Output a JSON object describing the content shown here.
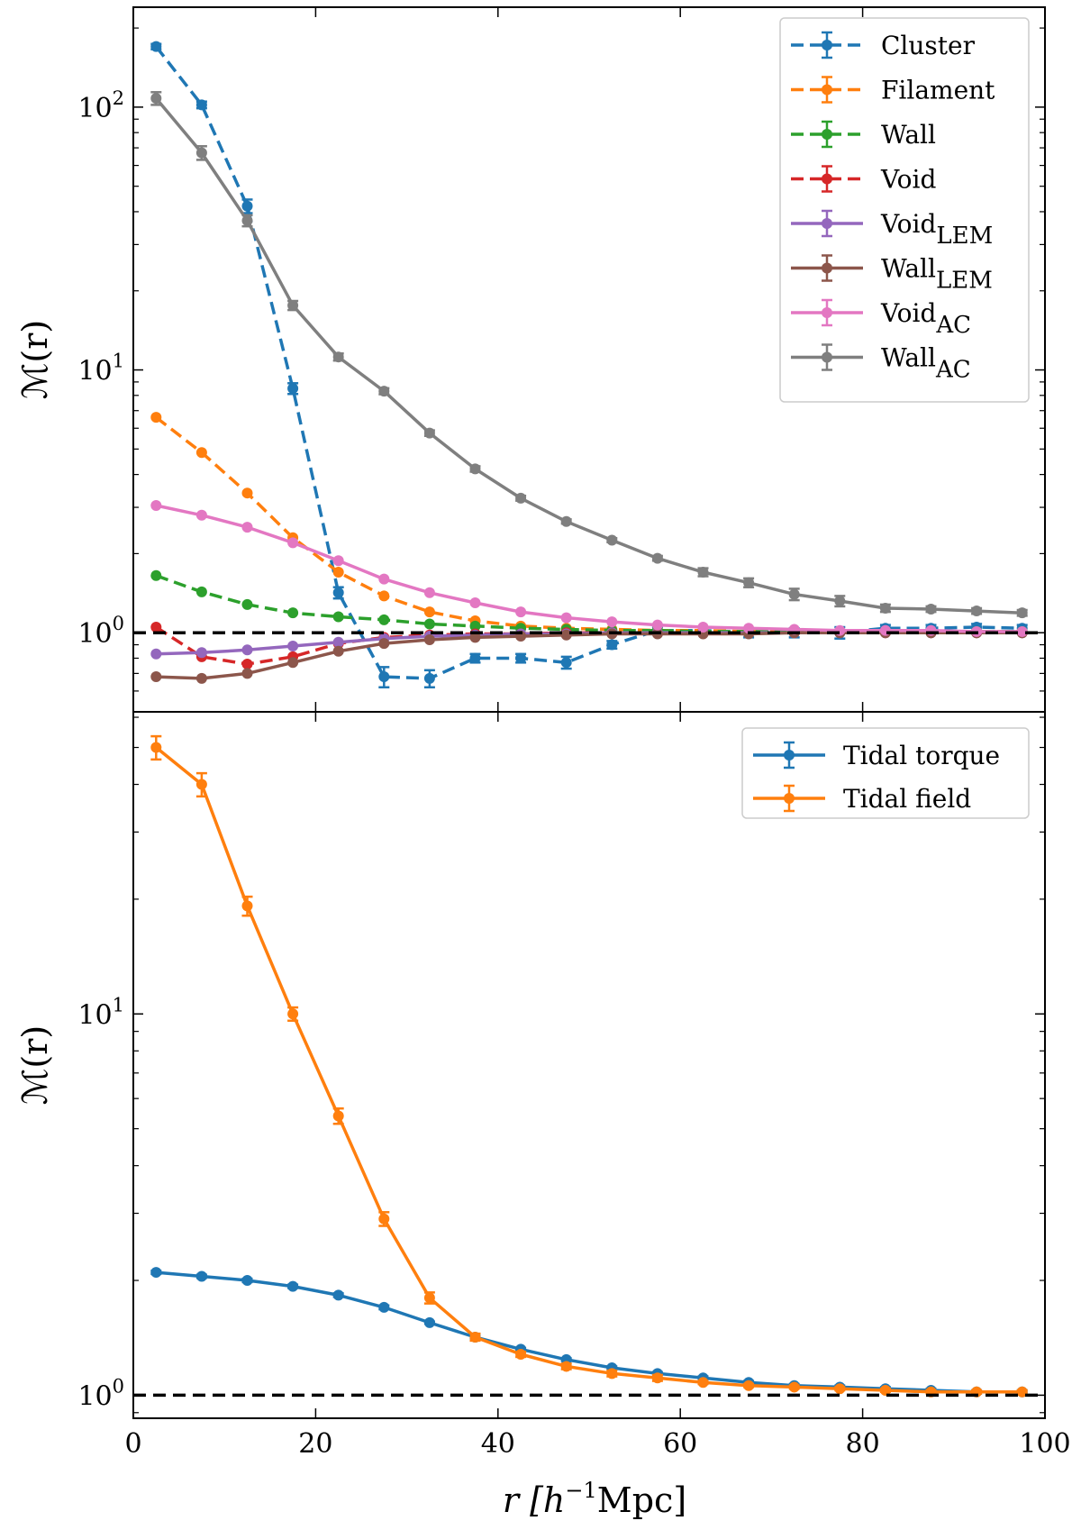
{
  "figure": {
    "xlabel_main": "r [h",
    "xlabel_sup": "−1",
    "xlabel_tail": "Mpc]",
    "xlim": [
      0,
      100
    ],
    "x_ticks": [
      0,
      20,
      40,
      60,
      80,
      100
    ],
    "x_tick_labels": [
      "0",
      "20",
      "40",
      "60",
      "80",
      "100"
    ]
  },
  "chart_data": [
    {
      "type": "line",
      "panel": "top",
      "ylabel": "ℳ(r)",
      "yscale": "log",
      "ylim": [
        0.5,
        240
      ],
      "y_ticks": [
        1,
        10,
        100
      ],
      "y_tick_labels": [
        {
          "base": "10",
          "exp": "0"
        },
        {
          "base": "10",
          "exp": "1"
        },
        {
          "base": "10",
          "exp": "2"
        }
      ],
      "reference_line": 1,
      "legend_position": "top-right",
      "x": [
        2.5,
        7.5,
        12.5,
        17.5,
        22.5,
        27.5,
        32.5,
        37.5,
        42.5,
        47.5,
        52.5,
        57.5,
        62.5,
        67.5,
        72.5,
        77.5,
        82.5,
        87.5,
        92.5,
        97.5
      ],
      "series": [
        {
          "name": "Cluster",
          "sub": "",
          "color": "#1f77b4",
          "dashed": true,
          "values": [
            170,
            102,
            42,
            8.5,
            1.42,
            0.68,
            0.67,
            0.8,
            0.8,
            0.77,
            0.9,
            1.02,
            1.02,
            1.0,
            1.0,
            1.0,
            1.04,
            1.04,
            1.05,
            1.04
          ],
          "errors": [
            4,
            3,
            2.5,
            0.4,
            0.07,
            0.06,
            0.05,
            0.03,
            0.03,
            0.04,
            0.03,
            0.03,
            0.03,
            0.04,
            0.04,
            0.05,
            0.03,
            0.03,
            0.03,
            0.03
          ]
        },
        {
          "name": "Filament",
          "sub": "",
          "color": "#ff7f0e",
          "dashed": true,
          "values": [
            6.6,
            4.85,
            3.4,
            2.3,
            1.7,
            1.38,
            1.2,
            1.11,
            1.06,
            1.04,
            1.03,
            1.02,
            1.02,
            1.01,
            1.01,
            1.01,
            1.01,
            1.01,
            1.01,
            1.01
          ],
          "errors": [
            0,
            0,
            0,
            0,
            0,
            0,
            0,
            0,
            0,
            0,
            0,
            0,
            0,
            0,
            0,
            0,
            0,
            0,
            0,
            0
          ]
        },
        {
          "name": "Wall",
          "sub": "",
          "color": "#2ca02c",
          "dashed": true,
          "values": [
            1.65,
            1.43,
            1.28,
            1.19,
            1.15,
            1.12,
            1.08,
            1.06,
            1.04,
            1.03,
            1.02,
            1.02,
            1.01,
            1.01,
            1.01,
            1.01,
            1.01,
            1.01,
            1.01,
            1.01
          ],
          "errors": [
            0,
            0,
            0,
            0,
            0,
            0,
            0,
            0,
            0,
            0,
            0,
            0,
            0,
            0,
            0,
            0,
            0,
            0,
            0,
            0
          ]
        },
        {
          "name": "Void",
          "sub": "",
          "color": "#d62728",
          "dashed": true,
          "values": [
            1.05,
            0.81,
            0.76,
            0.81,
            0.91,
            0.96,
            0.98,
            0.99,
            0.99,
            1.0,
            1.0,
            1.0,
            1.0,
            1.0,
            1.0,
            1.0,
            1.0,
            1.0,
            1.0,
            1.0
          ],
          "errors": [
            0,
            0,
            0,
            0,
            0,
            0,
            0,
            0,
            0,
            0,
            0,
            0,
            0,
            0,
            0,
            0,
            0,
            0,
            0,
            0
          ]
        },
        {
          "name": "Void",
          "sub": "LEM",
          "color": "#9467bd",
          "dashed": false,
          "values": [
            0.83,
            0.84,
            0.86,
            0.89,
            0.92,
            0.95,
            0.97,
            0.98,
            0.99,
            0.99,
            1.0,
            1.0,
            1.0,
            1.0,
            1.0,
            1.0,
            1.0,
            1.0,
            1.0,
            1.0
          ],
          "errors": [
            0,
            0,
            0,
            0,
            0,
            0,
            0,
            0,
            0,
            0,
            0,
            0,
            0,
            0,
            0,
            0,
            0,
            0,
            0,
            0
          ]
        },
        {
          "name": "Wall",
          "sub": "LEM",
          "color": "#8c564b",
          "dashed": false,
          "values": [
            0.68,
            0.67,
            0.7,
            0.77,
            0.85,
            0.91,
            0.94,
            0.96,
            0.97,
            0.98,
            0.99,
            0.99,
            0.99,
            0.99,
            1.0,
            1.0,
            1.0,
            1.0,
            1.0,
            1.0
          ],
          "errors": [
            0,
            0,
            0,
            0,
            0,
            0,
            0,
            0,
            0,
            0,
            0,
            0,
            0,
            0,
            0,
            0,
            0,
            0,
            0,
            0
          ]
        },
        {
          "name": "Void",
          "sub": "AC",
          "color": "#e377c2",
          "dashed": false,
          "values": [
            3.05,
            2.8,
            2.52,
            2.2,
            1.88,
            1.6,
            1.42,
            1.3,
            1.2,
            1.14,
            1.1,
            1.07,
            1.05,
            1.04,
            1.03,
            1.02,
            1.02,
            1.02,
            1.01,
            1.01
          ],
          "errors": [
            0,
            0,
            0,
            0,
            0,
            0,
            0,
            0,
            0,
            0,
            0,
            0,
            0,
            0,
            0,
            0,
            0,
            0,
            0,
            0
          ]
        },
        {
          "name": "Wall",
          "sub": "AC",
          "color": "#7f7f7f",
          "dashed": false,
          "values": [
            108,
            67,
            37,
            17.6,
            11.2,
            8.3,
            5.75,
            4.2,
            3.25,
            2.65,
            2.25,
            1.92,
            1.7,
            1.55,
            1.4,
            1.32,
            1.24,
            1.23,
            1.21,
            1.19
          ],
          "errors": [
            6,
            4,
            1.8,
            0.7,
            0.35,
            0.22,
            0.14,
            0.1,
            0.07,
            0.05,
            0.04,
            0.04,
            0.06,
            0.06,
            0.07,
            0.06,
            0.04,
            0.03,
            0.03,
            0.03
          ]
        }
      ]
    },
    {
      "type": "line",
      "panel": "bottom",
      "ylabel": "ℳ(r)",
      "yscale": "log",
      "ylim": [
        0.87,
        62
      ],
      "y_ticks": [
        1,
        10
      ],
      "y_tick_labels": [
        {
          "base": "10",
          "exp": "0"
        },
        {
          "base": "10",
          "exp": "1"
        }
      ],
      "reference_line": 1,
      "legend_position": "top-right",
      "x": [
        2.5,
        7.5,
        12.5,
        17.5,
        22.5,
        27.5,
        32.5,
        37.5,
        42.5,
        47.5,
        52.5,
        57.5,
        62.5,
        67.5,
        72.5,
        77.5,
        82.5,
        87.5,
        92.5,
        97.5
      ],
      "series": [
        {
          "name": "Tidal torque",
          "sub": "",
          "color": "#1f77b4",
          "dashed": false,
          "values": [
            2.1,
            2.05,
            2.0,
            1.93,
            1.83,
            1.7,
            1.55,
            1.42,
            1.32,
            1.24,
            1.18,
            1.14,
            1.11,
            1.08,
            1.06,
            1.05,
            1.04,
            1.03,
            1.02,
            1.02
          ],
          "errors": [
            0.02,
            0.02,
            0.02,
            0.02,
            0.02,
            0.02,
            0.01,
            0.01,
            0.01,
            0.01,
            0.01,
            0.01,
            0.01,
            0.01,
            0.01,
            0.01,
            0.01,
            0.01,
            0.01,
            0.01
          ]
        },
        {
          "name": "Tidal field",
          "sub": "",
          "color": "#ff7f0e",
          "dashed": false,
          "values": [
            50,
            40,
            19.2,
            10.0,
            5.4,
            2.9,
            1.8,
            1.42,
            1.28,
            1.19,
            1.14,
            1.11,
            1.08,
            1.06,
            1.05,
            1.04,
            1.03,
            1.02,
            1.02,
            1.02
          ],
          "errors": [
            3.5,
            2.8,
            1.1,
            0.4,
            0.25,
            0.12,
            0.06,
            0.03,
            0.02,
            0.02,
            0.02,
            0.02,
            0.01,
            0.01,
            0.01,
            0.01,
            0.01,
            0.01,
            0.01,
            0.01
          ]
        }
      ]
    }
  ]
}
